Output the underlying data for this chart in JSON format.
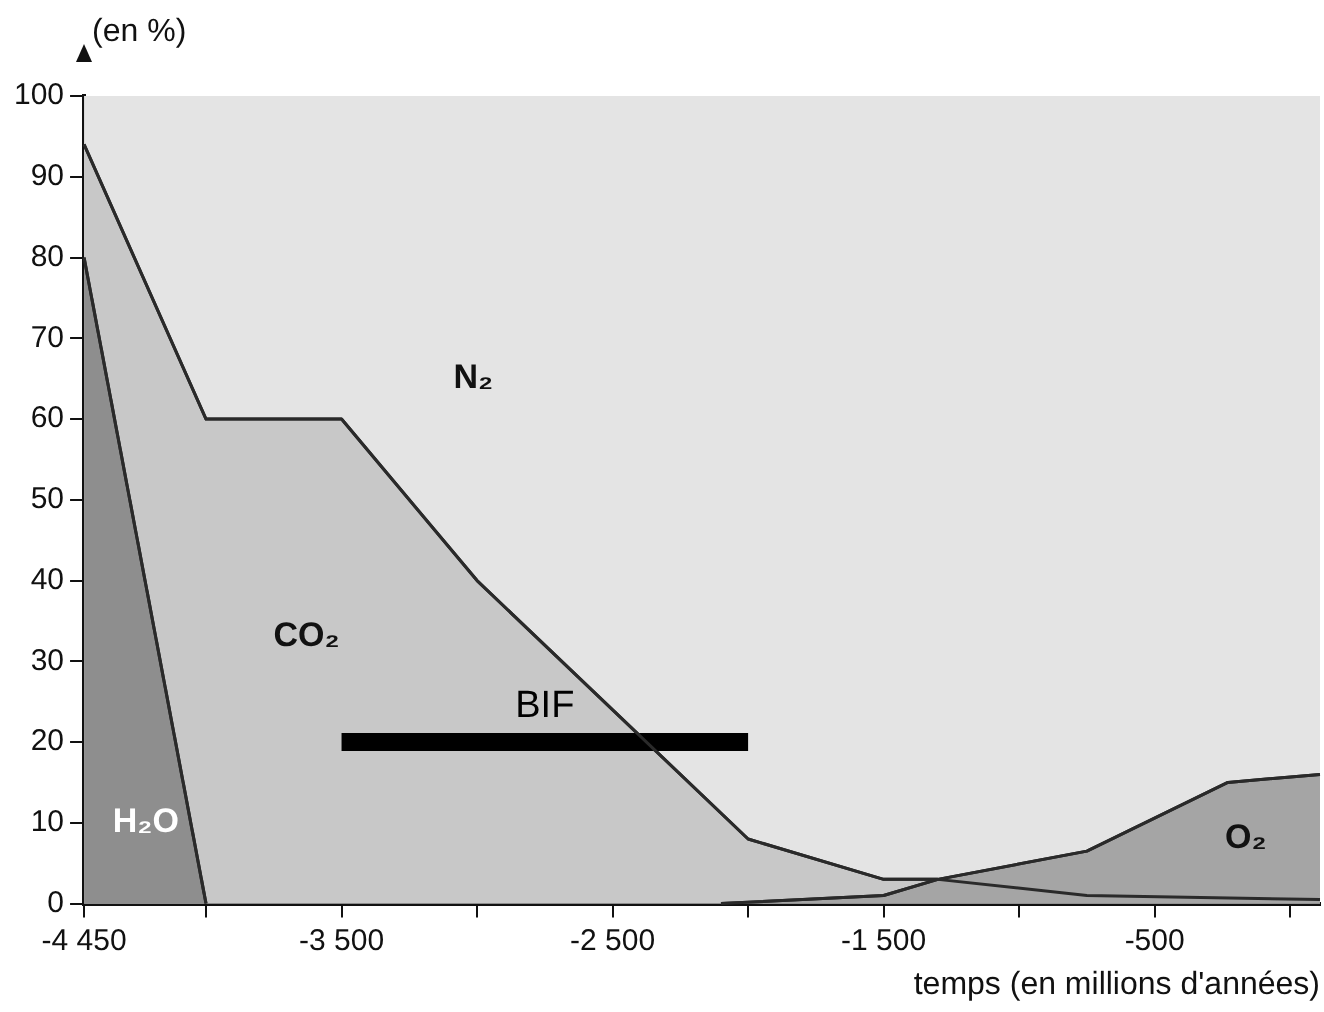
{
  "chart_data": {
    "type": "area",
    "ylabel": "(en %)",
    "xlabel": "temps (en millions d'années)",
    "xlim": [
      -4450,
      110
    ],
    "xticks": [
      {
        "value": -4450,
        "label": "-4 450"
      },
      {
        "value": -4000,
        "label": null
      },
      {
        "value": -3500,
        "label": "-3 500"
      },
      {
        "value": -3000,
        "label": null
      },
      {
        "value": -2500,
        "label": "-2 500"
      },
      {
        "value": -2000,
        "label": null
      },
      {
        "value": -1500,
        "label": "-1 500"
      },
      {
        "value": -1000,
        "label": null
      },
      {
        "value": -500,
        "label": "-500"
      },
      {
        "value": 0,
        "label": null
      }
    ],
    "ylim": [
      0,
      100
    ],
    "yticks": [
      0,
      10,
      20,
      30,
      40,
      50,
      60,
      70,
      80,
      90,
      100
    ],
    "grid": false,
    "legend": false,
    "marker": "none",
    "series": [
      {
        "name": "CO₂",
        "color": "#c8c8c8",
        "x": [
          -4450,
          -4000,
          -3500,
          -3000,
          -2000,
          -1500,
          -1300,
          -750,
          110
        ],
        "values": [
          94,
          60,
          60,
          40,
          8,
          3,
          3,
          1,
          0.5
        ]
      },
      {
        "name": "H₂O",
        "color": "#8e8e8e",
        "x": [
          -4450,
          -4000
        ],
        "values": [
          80,
          0
        ]
      },
      {
        "name": "O₂",
        "color": "#a5a5a5",
        "x": [
          -2100,
          -1500,
          -1300,
          -750,
          -230,
          110
        ],
        "values": [
          0,
          1,
          3,
          6.5,
          15,
          16
        ]
      },
      {
        "name": "BIF",
        "type": "line",
        "color": "#000000",
        "x": [
          -3500,
          -2000
        ],
        "values": [
          20,
          20
        ]
      }
    ],
    "annotations": [
      "N₂"
    ]
  }
}
